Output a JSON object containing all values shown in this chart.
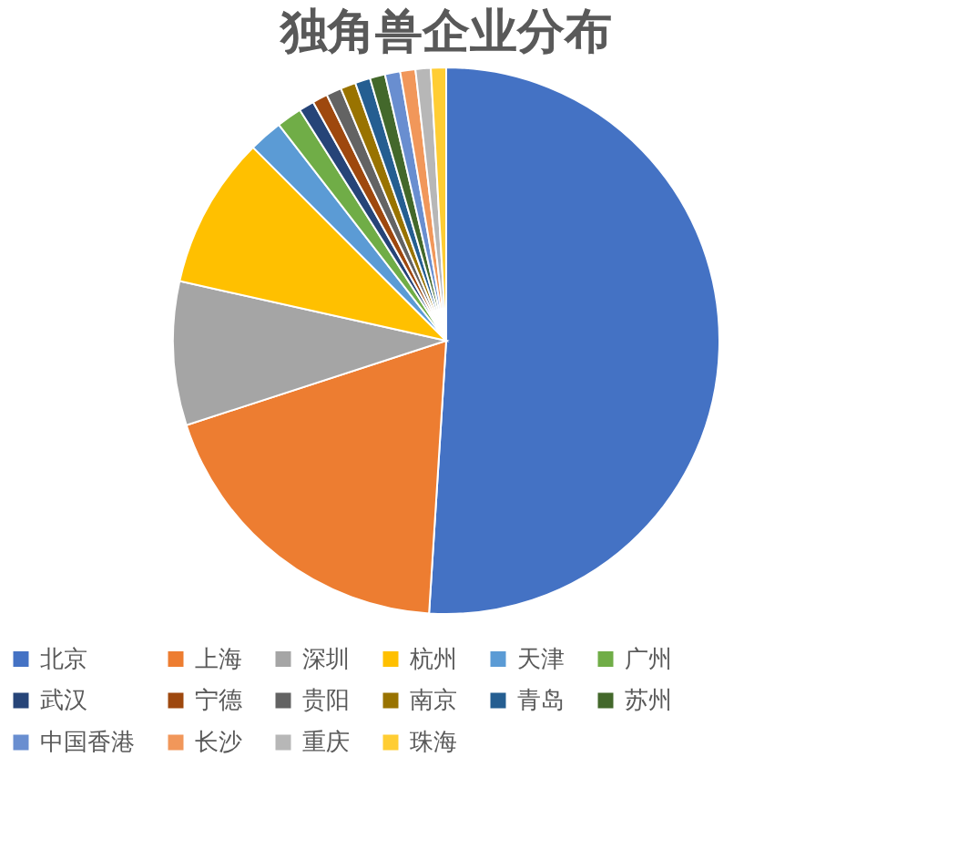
{
  "chart_data": {
    "type": "pie",
    "title": "独角兽企业分布",
    "categories": [
      "北京",
      "上海",
      "深圳",
      "杭州",
      "天津",
      "广州",
      "武汉",
      "宁德",
      "贵阳",
      "南京",
      "青岛",
      "苏州",
      "中国香港",
      "长沙",
      "重庆",
      "珠海"
    ],
    "values": [
      51,
      19,
      8.5,
      9,
      2,
      1.5,
      0.9,
      0.9,
      0.9,
      0.9,
      0.9,
      0.9,
      0.9,
      0.9,
      0.9,
      0.9
    ],
    "colors": [
      "#4472c4",
      "#ed7d31",
      "#a5a5a5",
      "#ffc000",
      "#5b9bd5",
      "#70ad47",
      "#264478",
      "#9e480e",
      "#636363",
      "#997300",
      "#255e91",
      "#43682b",
      "#698ed0",
      "#f1975a",
      "#b7b7b7",
      "#ffcd33"
    ],
    "legend": "bottom"
  }
}
